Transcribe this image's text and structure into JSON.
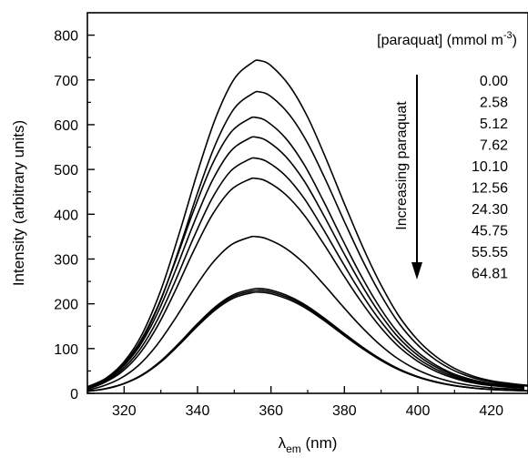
{
  "chart_data": {
    "type": "line",
    "xlabel": "λ",
    "xlabel_sub": "em",
    "xlabel_unit": " (nm)",
    "ylabel": "Intensity (arbitrary units)",
    "xlim": [
      310,
      430
    ],
    "ylim": [
      0,
      850
    ],
    "xticks": [
      320,
      340,
      360,
      380,
      400,
      420
    ],
    "yticks": [
      0,
      100,
      200,
      300,
      400,
      500,
      600,
      700,
      800
    ],
    "grid": false,
    "legend": {
      "title_prefix": "[paraquat] (mmol m",
      "title_sup": "-3",
      "title_suffix": ")",
      "placement": "top-right",
      "arrow_label": "Increasing paraquat"
    },
    "series": [
      {
        "name": "0.00",
        "peak_x": 357,
        "peak_y": 743
      },
      {
        "name": "2.58",
        "peak_x": 357,
        "peak_y": 673
      },
      {
        "name": "5.12",
        "peak_x": 356,
        "peak_y": 616
      },
      {
        "name": "7.62",
        "peak_x": 356,
        "peak_y": 572
      },
      {
        "name": "10.10",
        "peak_x": 356,
        "peak_y": 525
      },
      {
        "name": "12.56",
        "peak_x": 356,
        "peak_y": 480
      },
      {
        "name": "24.30",
        "peak_x": 356,
        "peak_y": 350
      },
      {
        "name": "45.75",
        "peak_x": 357,
        "peak_y": 234
      },
      {
        "name": "55.55",
        "peak_x": 357,
        "peak_y": 230
      },
      {
        "name": "64.81",
        "peak_x": 357,
        "peak_y": 226
      }
    ],
    "curve_shape": {
      "x": [
        310,
        315,
        320,
        325,
        330,
        335,
        340,
        345,
        350,
        355,
        357,
        360,
        365,
        370,
        375,
        380,
        385,
        390,
        395,
        400,
        405,
        410,
        415,
        420,
        425,
        430
      ],
      "relative": [
        0.02,
        0.045,
        0.095,
        0.18,
        0.31,
        0.48,
        0.665,
        0.83,
        0.945,
        0.995,
        1.0,
        0.985,
        0.925,
        0.83,
        0.705,
        0.57,
        0.44,
        0.325,
        0.23,
        0.16,
        0.11,
        0.075,
        0.052,
        0.038,
        0.03,
        0.024
      ]
    }
  }
}
